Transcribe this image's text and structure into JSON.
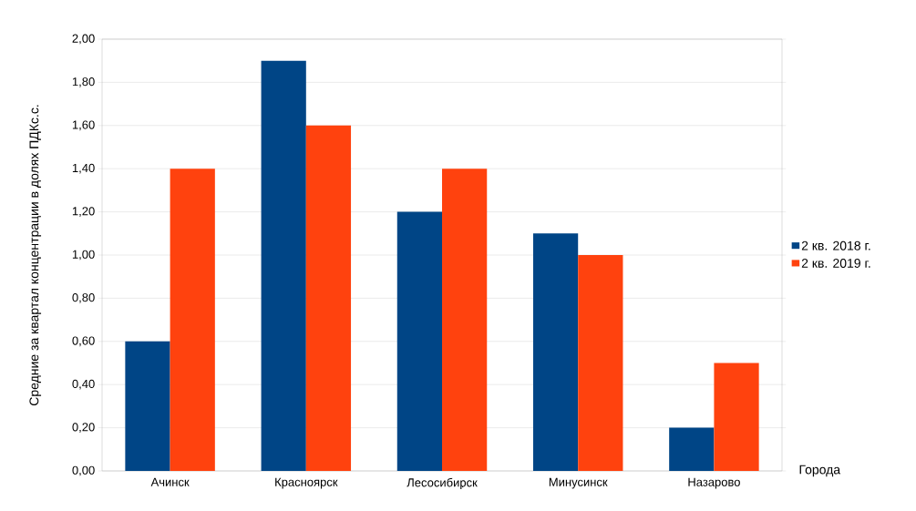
{
  "chart_data": {
    "type": "bar",
    "ylabel": "Средние за квартал концентрации в долях ПДКс.с.",
    "xlabel": "Города",
    "categories": [
      "Ачинск",
      "Красноярск",
      "Лесосибирск",
      "Минусинск",
      "Назарово"
    ],
    "series": [
      {
        "name": "2 кв. 2018 г.",
        "color": "#004586",
        "values": [
          0.6,
          1.9,
          1.2,
          1.1,
          0.2
        ]
      },
      {
        "name": "2 кв. 2019 г.",
        "color": "#ff420e",
        "values": [
          1.4,
          1.6,
          1.4,
          1.0,
          0.5
        ]
      }
    ],
    "ylim": [
      0,
      2
    ],
    "yticks": [
      {
        "value": 0,
        "label": "0,00"
      },
      {
        "value": 0.2,
        "label": "0,20"
      },
      {
        "value": 0.4,
        "label": "0,40"
      },
      {
        "value": 0.6,
        "label": "0,60"
      },
      {
        "value": 0.8,
        "label": "0,80"
      },
      {
        "value": 1.0,
        "label": "1,00"
      },
      {
        "value": 1.2,
        "label": "1,20"
      },
      {
        "value": 1.4,
        "label": "1,40"
      },
      {
        "value": 1.6,
        "label": "1,60"
      },
      {
        "value": 1.8,
        "label": "1,80"
      },
      {
        "value": 2.0,
        "label": "2,00"
      }
    ],
    "grid": "y",
    "legend": "right"
  }
}
